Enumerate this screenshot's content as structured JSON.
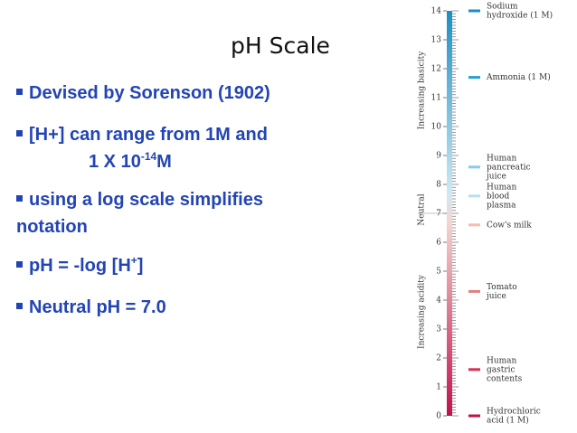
{
  "title": "pH Scale",
  "bullets": [
    {
      "parts": [
        "Devised by Sorenson (1902)"
      ]
    },
    {
      "parts": [
        "[H+] can range from 1M and"
      ],
      "line2": [
        "1 X 10",
        "-14",
        "M"
      ]
    },
    {
      "parts": [
        "using a log scale simplifies"
      ],
      "line2": [
        "notation"
      ]
    },
    {
      "parts": [
        "pH = -log [H",
        "+",
        "]"
      ]
    },
    {
      "parts": [
        "Neutral pH = 7.0"
      ]
    }
  ],
  "figure": {
    "ylim": [
      0,
      14
    ],
    "yticks": [
      0,
      1,
      2,
      3,
      4,
      5,
      6,
      7,
      8,
      9,
      10,
      11,
      12,
      13,
      14
    ],
    "axis_labels": [
      "Increasing basicity",
      "Neutral",
      "Increasing acidity"
    ],
    "markers": [
      {
        "lines": [
          "Sodium",
          "hydroxide (1 M)"
        ],
        "ph": 14,
        "color": "#1a8fc4"
      },
      {
        "lines": [
          "Ammonia (1 M)"
        ],
        "ph": 11.7,
        "color": "#2a9fd0"
      },
      {
        "lines": [
          "Human",
          "pancreatic",
          "juice"
        ],
        "ph": 8.6,
        "color": "#86cbe9"
      },
      {
        "lines": [
          "Human",
          "blood",
          "plasma"
        ],
        "ph": 7.6,
        "color": "#b6e0f1"
      },
      {
        "lines": [
          "Cow's milk"
        ],
        "ph": 6.6,
        "color": "#f2bcb4"
      },
      {
        "lines": [
          "Tomato",
          "juice"
        ],
        "ph": 4.3,
        "color": "#e07f7c"
      },
      {
        "lines": [
          "Human",
          "gastric",
          "contents"
        ],
        "ph": 1.6,
        "color": "#d23352"
      },
      {
        "lines": [
          "Hydrochloric",
          "acid (1 M)"
        ],
        "ph": 0,
        "color": "#c2104c"
      }
    ]
  }
}
